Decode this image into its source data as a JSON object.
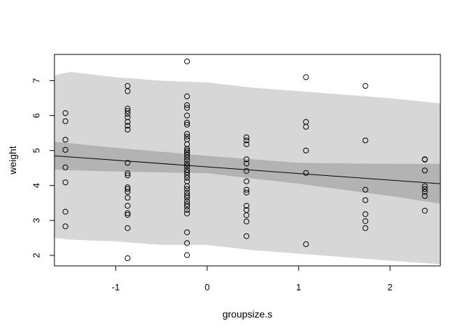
{
  "chart_data": {
    "type": "scatter",
    "title": "",
    "xlabel": "groupsize.s",
    "ylabel": "weight",
    "xlim": [
      -1.67,
      2.55
    ],
    "ylim": [
      1.7,
      7.75
    ],
    "xticks": [
      -1,
      0,
      1,
      2
    ],
    "yticks": [
      2,
      3,
      4,
      5,
      6,
      7
    ],
    "grid": false,
    "legend": "none",
    "colors": {
      "prediction_band": "#d7d7d7",
      "mean_band": "#b3b3b3",
      "line": "#000000",
      "points": "#000000"
    },
    "regression_line": {
      "x": [
        -1.67,
        2.55
      ],
      "y": [
        4.85,
        4.05
      ]
    },
    "mean_band": {
      "x": [
        -1.67,
        -1.0,
        0.0,
        1.0,
        2.0,
        2.55
      ],
      "lower": [
        4.45,
        4.4,
        4.35,
        4.05,
        3.7,
        3.48
      ],
      "upper": [
        5.25,
        5.08,
        4.85,
        4.65,
        4.62,
        4.62
      ]
    },
    "prediction_band": {
      "x": [
        -1.67,
        -1.5,
        -1.0,
        -0.5,
        0.0,
        0.5,
        1.0,
        1.5,
        2.0,
        2.55
      ],
      "lower": [
        2.5,
        2.45,
        2.4,
        2.3,
        2.3,
        2.15,
        2.05,
        1.95,
        1.85,
        1.75
      ],
      "upper": [
        7.15,
        7.25,
        7.1,
        7.0,
        6.95,
        6.8,
        6.7,
        6.6,
        6.5,
        6.35
      ]
    },
    "points": [
      [
        -1.55,
        6.07
      ],
      [
        -1.55,
        5.84
      ],
      [
        -1.55,
        5.31
      ],
      [
        -1.55,
        5.02
      ],
      [
        -1.55,
        4.52
      ],
      [
        -1.55,
        4.09
      ],
      [
        -1.55,
        3.25
      ],
      [
        -1.55,
        2.83
      ],
      [
        -0.87,
        6.85
      ],
      [
        -0.87,
        6.7
      ],
      [
        -0.87,
        6.2
      ],
      [
        -0.87,
        6.13
      ],
      [
        -0.87,
        6.05
      ],
      [
        -0.87,
        5.95
      ],
      [
        -0.87,
        5.82
      ],
      [
        -0.87,
        5.71
      ],
      [
        -0.87,
        5.6
      ],
      [
        -0.87,
        4.65
      ],
      [
        -0.87,
        4.35
      ],
      [
        -0.87,
        4.29
      ],
      [
        -0.87,
        3.95
      ],
      [
        -0.87,
        3.9
      ],
      [
        -0.87,
        3.82
      ],
      [
        -0.87,
        3.65
      ],
      [
        -0.87,
        3.42
      ],
      [
        -0.87,
        3.21
      ],
      [
        -0.87,
        3.16
      ],
      [
        -0.87,
        2.78
      ],
      [
        -0.87,
        1.92
      ],
      [
        -0.22,
        7.55
      ],
      [
        -0.22,
        6.55
      ],
      [
        -0.22,
        6.3
      ],
      [
        -0.22,
        6.22
      ],
      [
        -0.22,
        6.0
      ],
      [
        -0.22,
        5.8
      ],
      [
        -0.22,
        5.74
      ],
      [
        -0.22,
        5.48
      ],
      [
        -0.22,
        5.4
      ],
      [
        -0.22,
        5.32
      ],
      [
        -0.22,
        5.18
      ],
      [
        -0.22,
        5.05
      ],
      [
        -0.22,
        5.0
      ],
      [
        -0.22,
        4.95
      ],
      [
        -0.22,
        4.88
      ],
      [
        -0.22,
        4.8
      ],
      [
        -0.22,
        4.72
      ],
      [
        -0.22,
        4.62
      ],
      [
        -0.22,
        4.55
      ],
      [
        -0.22,
        4.45
      ],
      [
        -0.22,
        4.38
      ],
      [
        -0.22,
        4.3
      ],
      [
        -0.22,
        4.22
      ],
      [
        -0.22,
        4.12
      ],
      [
        -0.22,
        3.98
      ],
      [
        -0.22,
        3.9
      ],
      [
        -0.22,
        3.8
      ],
      [
        -0.22,
        3.72
      ],
      [
        -0.22,
        3.65
      ],
      [
        -0.22,
        3.55
      ],
      [
        -0.22,
        3.47
      ],
      [
        -0.22,
        3.4
      ],
      [
        -0.22,
        3.3
      ],
      [
        -0.22,
        3.2
      ],
      [
        -0.22,
        2.66
      ],
      [
        -0.22,
        2.35
      ],
      [
        -0.22,
        2.01
      ],
      [
        0.43,
        5.38
      ],
      [
        0.43,
        5.29
      ],
      [
        0.43,
        5.18
      ],
      [
        0.43,
        4.75
      ],
      [
        0.43,
        4.63
      ],
      [
        0.43,
        4.42
      ],
      [
        0.43,
        4.12
      ],
      [
        0.43,
        3.88
      ],
      [
        0.43,
        3.8
      ],
      [
        0.43,
        3.42
      ],
      [
        0.43,
        3.3
      ],
      [
        0.43,
        3.15
      ],
      [
        0.43,
        2.97
      ],
      [
        0.43,
        2.55
      ],
      [
        1.08,
        7.1
      ],
      [
        1.08,
        5.82
      ],
      [
        1.08,
        5.68
      ],
      [
        1.08,
        5.0
      ],
      [
        1.08,
        4.36
      ],
      [
        1.08,
        2.32
      ],
      [
        1.73,
        6.85
      ],
      [
        1.73,
        5.29
      ],
      [
        1.73,
        3.88
      ],
      [
        1.73,
        3.58
      ],
      [
        1.73,
        3.18
      ],
      [
        1.73,
        2.98
      ],
      [
        1.73,
        2.78
      ],
      [
        2.38,
        4.75
      ],
      [
        2.38,
        4.74
      ],
      [
        2.38,
        4.43
      ],
      [
        2.38,
        3.98
      ],
      [
        2.38,
        3.9
      ],
      [
        2.38,
        3.82
      ],
      [
        2.38,
        3.7
      ],
      [
        2.38,
        3.28
      ]
    ]
  }
}
